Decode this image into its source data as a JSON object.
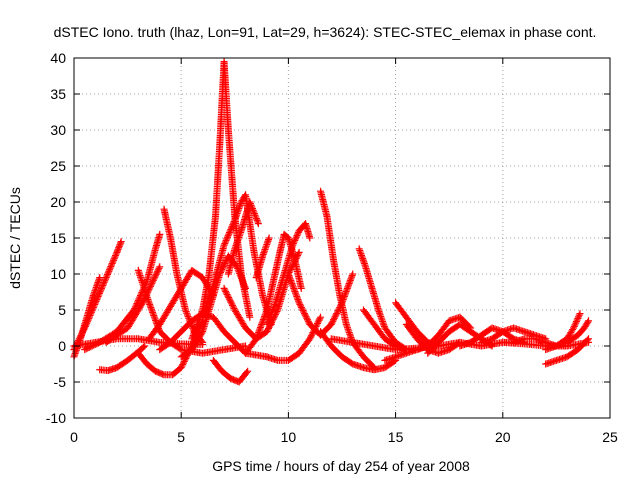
{
  "chart_data": {
    "type": "scatter",
    "title": "dSTEC Iono. truth (lhaz, Lon=91, Lat=29, h=3624): STEC-STEC_elemax in phase cont.",
    "xlabel": "GPS time / hours of day 254 of year 2008",
    "ylabel": "dSTEC  / TECUs",
    "xlim": [
      0,
      25
    ],
    "ylim": [
      -10,
      40
    ],
    "xticks": [
      0,
      5,
      10,
      15,
      20,
      25
    ],
    "yticks": [
      -10,
      -5,
      0,
      5,
      10,
      15,
      20,
      25,
      30,
      35,
      40
    ],
    "grid": true,
    "marker": "+",
    "color": "#ff0000",
    "series": [
      {
        "x": [
          0.0,
          0.3,
          0.6,
          0.9,
          1.2
        ],
        "y": [
          -1.5,
          1.0,
          4.0,
          7.0,
          9.5
        ]
      },
      {
        "x": [
          0.0,
          0.5,
          1.0,
          1.5,
          2.0,
          2.2
        ],
        "y": [
          -0.5,
          2.5,
          6.0,
          9.5,
          13.0,
          14.5
        ]
      },
      {
        "x": [
          0.0,
          1.0,
          2.0,
          3.0,
          4.0,
          5.0,
          6.0
        ],
        "y": [
          0.0,
          0.5,
          1.0,
          1.0,
          0.5,
          0.3,
          0.2
        ]
      },
      {
        "x": [
          1.2,
          1.6,
          2.0,
          2.5,
          3.0,
          3.3
        ],
        "y": [
          -3.3,
          -3.4,
          -3.0,
          -2.0,
          -0.8,
          0.0
        ]
      },
      {
        "x": [
          0.5,
          1.2,
          2.0,
          2.8,
          3.4,
          3.8,
          4.0
        ],
        "y": [
          -0.5,
          0.5,
          2.0,
          5.0,
          9.0,
          13.5,
          15.5
        ]
      },
      {
        "x": [
          4.2,
          4.5,
          4.8,
          5.2,
          5.6,
          6.0
        ],
        "y": [
          19.0,
          15.0,
          10.0,
          5.0,
          2.0,
          0.5
        ]
      },
      {
        "x": [
          3.0,
          3.5,
          4.0,
          4.5,
          5.0,
          6.0,
          7.0,
          8.0
        ],
        "y": [
          10.5,
          6.0,
          2.0,
          0.5,
          -0.5,
          -1.0,
          -0.5,
          0.0
        ]
      },
      {
        "x": [
          1.5,
          2.5,
          3.2,
          3.6,
          4.0
        ],
        "y": [
          0.5,
          2.5,
          6.0,
          8.5,
          11.0
        ]
      },
      {
        "x": [
          3.0,
          3.4,
          3.8,
          4.2,
          4.6,
          5.0,
          5.5,
          6.0
        ],
        "y": [
          -1.0,
          -2.5,
          -3.5,
          -4.0,
          -4.0,
          -3.0,
          0.0,
          3.5
        ]
      },
      {
        "x": [
          3.5,
          4.0,
          4.5,
          5.0,
          5.5,
          6.0,
          6.5
        ],
        "y": [
          1.0,
          3.0,
          5.5,
          8.0,
          10.5,
          9.5,
          7.0
        ]
      },
      {
        "x": [
          4.0,
          4.5,
          5.0,
          5.5,
          6.0,
          6.5,
          7.0,
          7.5,
          8.0,
          9.0
        ],
        "y": [
          -0.5,
          0.5,
          2.0,
          3.5,
          4.5,
          4.0,
          2.0,
          0.5,
          -1.0,
          -1.5
        ]
      },
      {
        "x": [
          5.0,
          5.5,
          6.0,
          6.4,
          6.8,
          7.2,
          7.6,
          8.0
        ],
        "y": [
          -1.5,
          -0.5,
          2.0,
          6.0,
          10.0,
          12.5,
          11.0,
          8.0
        ]
      },
      {
        "x": [
          5.5,
          6.0,
          6.3,
          6.6,
          6.8,
          7.0,
          7.2,
          7.5,
          7.8,
          8.2
        ],
        "y": [
          1.0,
          5.0,
          10.0,
          18.0,
          28.0,
          39.5,
          30.0,
          18.0,
          10.0,
          4.0
        ]
      },
      {
        "x": [
          6.0,
          6.5,
          7.0,
          7.5,
          7.8,
          8.0,
          8.4,
          8.8,
          9.2
        ],
        "y": [
          4.0,
          8.5,
          14.0,
          17.5,
          20.0,
          21.0,
          13.0,
          7.0,
          3.0
        ]
      },
      {
        "x": [
          7.2,
          7.5,
          7.8,
          8.0,
          8.2,
          8.6
        ],
        "y": [
          10.0,
          13.5,
          16.0,
          18.0,
          20.0,
          17.0
        ]
      },
      {
        "x": [
          6.5,
          6.9,
          7.3,
          7.7,
          8.1
        ],
        "y": [
          -2.0,
          -3.5,
          -4.5,
          -5.0,
          -3.5
        ]
      },
      {
        "x": [
          7.0,
          7.5,
          8.0,
          8.5,
          9.0,
          9.5,
          10.0,
          10.5
        ],
        "y": [
          8.0,
          5.0,
          2.5,
          1.0,
          2.0,
          5.0,
          10.0,
          13.0
        ]
      },
      {
        "x": [
          8.0,
          8.5,
          9.0,
          9.3,
          9.6,
          9.8,
          10.0,
          10.3,
          10.6
        ],
        "y": [
          -1.0,
          1.0,
          5.0,
          9.0,
          13.0,
          15.5,
          15.0,
          12.0,
          8.0
        ]
      },
      {
        "x": [
          8.5,
          8.8,
          9.1
        ],
        "y": [
          9.5,
          12.5,
          15.0
        ]
      },
      {
        "x": [
          9.0,
          9.4,
          9.8,
          10.2,
          10.5,
          10.8,
          11.0
        ],
        "y": [
          3.0,
          6.0,
          10.0,
          14.0,
          16.0,
          17.0,
          15.0
        ]
      },
      {
        "x": [
          10.0,
          10.5,
          11.0,
          11.5,
          12.0,
          12.5,
          13.0
        ],
        "y": [
          10.0,
          6.0,
          3.0,
          1.5,
          3.0,
          6.0,
          10.0
        ]
      },
      {
        "x": [
          9.0,
          9.5,
          10.0,
          10.5,
          11.0,
          11.5
        ],
        "y": [
          -1.5,
          -2.0,
          -2.0,
          -1.0,
          1.0,
          4.0
        ]
      },
      {
        "x": [
          11.5,
          11.8,
          12.1,
          12.4,
          12.7,
          13.0,
          13.5,
          14.0
        ],
        "y": [
          21.5,
          18.0,
          12.0,
          7.0,
          3.0,
          0.5,
          -1.5,
          -3.0
        ]
      },
      {
        "x": [
          11.5,
          12.0,
          12.5,
          13.0,
          13.5,
          14.0,
          14.5,
          15.0
        ],
        "y": [
          2.0,
          0.0,
          -1.5,
          -2.5,
          -3.0,
          -3.3,
          -3.0,
          -2.0
        ]
      },
      {
        "x": [
          13.3,
          13.6,
          13.9,
          14.2,
          14.5,
          15.0,
          15.5
        ],
        "y": [
          13.5,
          11.0,
          8.0,
          5.0,
          2.5,
          0.5,
          -0.5
        ]
      },
      {
        "x": [
          13.5,
          14.0,
          14.5,
          15.0,
          15.5,
          16.0,
          16.5
        ],
        "y": [
          5.0,
          3.0,
          1.0,
          0.0,
          -0.5,
          -0.5,
          0.0
        ]
      },
      {
        "x": [
          15.0,
          15.5,
          16.0,
          16.5,
          17.0
        ],
        "y": [
          6.0,
          4.0,
          2.0,
          0.5,
          0.0
        ]
      },
      {
        "x": [
          12.0,
          13.0,
          14.0,
          15.0,
          16.0,
          17.0,
          18.0,
          19.0,
          20.0,
          21.0,
          22.0,
          23.0,
          24.0
        ],
        "y": [
          1.0,
          0.5,
          0.0,
          -0.5,
          -0.3,
          0.0,
          0.5,
          0.0,
          0.5,
          0.3,
          0.0,
          0.0,
          0.5
        ]
      },
      {
        "x": [
          14.5,
          15.0,
          15.5,
          16.0,
          16.5,
          17.0,
          17.5,
          18.0,
          18.5
        ],
        "y": [
          -2.0,
          -1.5,
          -1.0,
          -0.5,
          0.0,
          1.5,
          3.5,
          4.0,
          2.5
        ]
      },
      {
        "x": [
          15.5,
          16.0,
          16.5,
          17.0,
          17.5,
          18.0
        ],
        "y": [
          3.0,
          1.0,
          -0.5,
          -1.0,
          -0.5,
          0.5
        ]
      },
      {
        "x": [
          16.5,
          17.0,
          17.5,
          18.0,
          18.5,
          19.0,
          19.5
        ],
        "y": [
          -1.0,
          0.5,
          2.0,
          3.0,
          2.0,
          1.0,
          0.0
        ]
      },
      {
        "x": [
          18.0,
          18.5,
          19.0,
          19.5,
          20.0,
          20.5,
          21.0
        ],
        "y": [
          0.0,
          0.5,
          1.5,
          2.5,
          2.0,
          1.0,
          0.5
        ]
      },
      {
        "x": [
          19.0,
          19.5,
          20.0,
          20.5,
          21.0,
          21.5,
          22.0
        ],
        "y": [
          0.5,
          1.0,
          2.0,
          2.5,
          2.0,
          1.5,
          1.0
        ]
      },
      {
        "x": [
          20.0,
          20.5,
          21.0,
          21.5,
          22.0,
          22.5,
          23.0
        ],
        "y": [
          0.5,
          0.5,
          1.0,
          1.0,
          0.5,
          0.0,
          0.0
        ]
      },
      {
        "x": [
          22.0,
          22.5,
          23.0,
          23.5,
          24.0
        ],
        "y": [
          -2.5,
          -2.0,
          -1.5,
          -0.5,
          1.0
        ]
      },
      {
        "x": [
          22.0,
          22.5,
          23.0,
          23.3,
          23.6
        ],
        "y": [
          -0.5,
          0.0,
          1.0,
          2.5,
          4.5
        ]
      },
      {
        "x": [
          22.5,
          23.0,
          23.5,
          23.8,
          24.0
        ],
        "y": [
          0.0,
          0.5,
          1.5,
          2.5,
          3.5
        ]
      }
    ]
  }
}
